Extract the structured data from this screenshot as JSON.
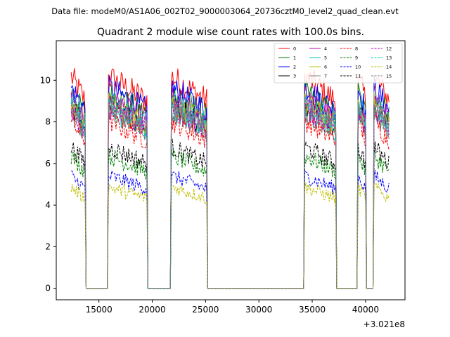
{
  "chart_data": {
    "type": "line",
    "suptitle": "Data file: modeM0/AS1A06_002T02_9000003064_20736cztM0_level2_quad_clean.evt",
    "title": "Quadrant 2 module wise count rates with 100.0s bins.",
    "xlabel": "",
    "ylabel": "",
    "x_offset_label": "+3.021e8",
    "xlim": [
      11000,
      43700
    ],
    "ylim": [
      -0.55,
      11.9
    ],
    "x_ticks": [
      15000,
      20000,
      25000,
      30000,
      35000,
      40000
    ],
    "x_tick_labels": [
      "15000",
      "20000",
      "25000",
      "30000",
      "35000",
      "40000"
    ],
    "y_ticks": [
      0,
      2,
      4,
      6,
      8,
      10
    ],
    "y_tick_labels": [
      "0",
      "2",
      "4",
      "6",
      "8",
      "10"
    ],
    "bin_width": 100,
    "gti": [
      [
        12400,
        13700
      ],
      [
        15900,
        19500
      ],
      [
        21800,
        25100
      ],
      [
        34300,
        37200
      ],
      [
        39300,
        40000
      ],
      [
        40800,
        42200
      ]
    ],
    "legend_location": "upper right",
    "legend_columns": 4,
    "series": [
      {
        "name": "0",
        "color": "#ff0000",
        "dash": "solid",
        "mean": 9.6
      },
      {
        "name": "1",
        "color": "#008000",
        "dash": "solid",
        "mean": 8.9
      },
      {
        "name": "2",
        "color": "#0000ff",
        "dash": "solid",
        "mean": 9.1
      },
      {
        "name": "3",
        "color": "#000000",
        "dash": "solid",
        "mean": 8.3
      },
      {
        "name": "4",
        "color": "#bf00bf",
        "dash": "solid",
        "mean": 8.6
      },
      {
        "name": "5",
        "color": "#00bfbf",
        "dash": "solid",
        "mean": 8.1
      },
      {
        "name": "6",
        "color": "#bfbf00",
        "dash": "solid",
        "mean": 8.4
      },
      {
        "name": "7",
        "color": "#808080",
        "dash": "solid",
        "mean": 8.0
      },
      {
        "name": "8",
        "color": "#ff0000",
        "dash": "dashed",
        "mean": 7.6
      },
      {
        "name": "9",
        "color": "#008000",
        "dash": "dashed",
        "mean": 6.0
      },
      {
        "name": "10",
        "color": "#0000ff",
        "dash": "dashed",
        "mean": 5.1
      },
      {
        "name": "11",
        "color": "#000000",
        "dash": "dashed",
        "mean": 6.4
      },
      {
        "name": "12",
        "color": "#bf00bf",
        "dash": "dashed",
        "mean": 8.2
      },
      {
        "name": "13",
        "color": "#00bfbf",
        "dash": "dashed",
        "mean": 8.5
      },
      {
        "name": "14",
        "color": "#bfbf00",
        "dash": "dashed",
        "mean": 4.6
      },
      {
        "name": "15",
        "color": "#808080",
        "dash": "dashed",
        "mean": 8.3
      }
    ]
  }
}
